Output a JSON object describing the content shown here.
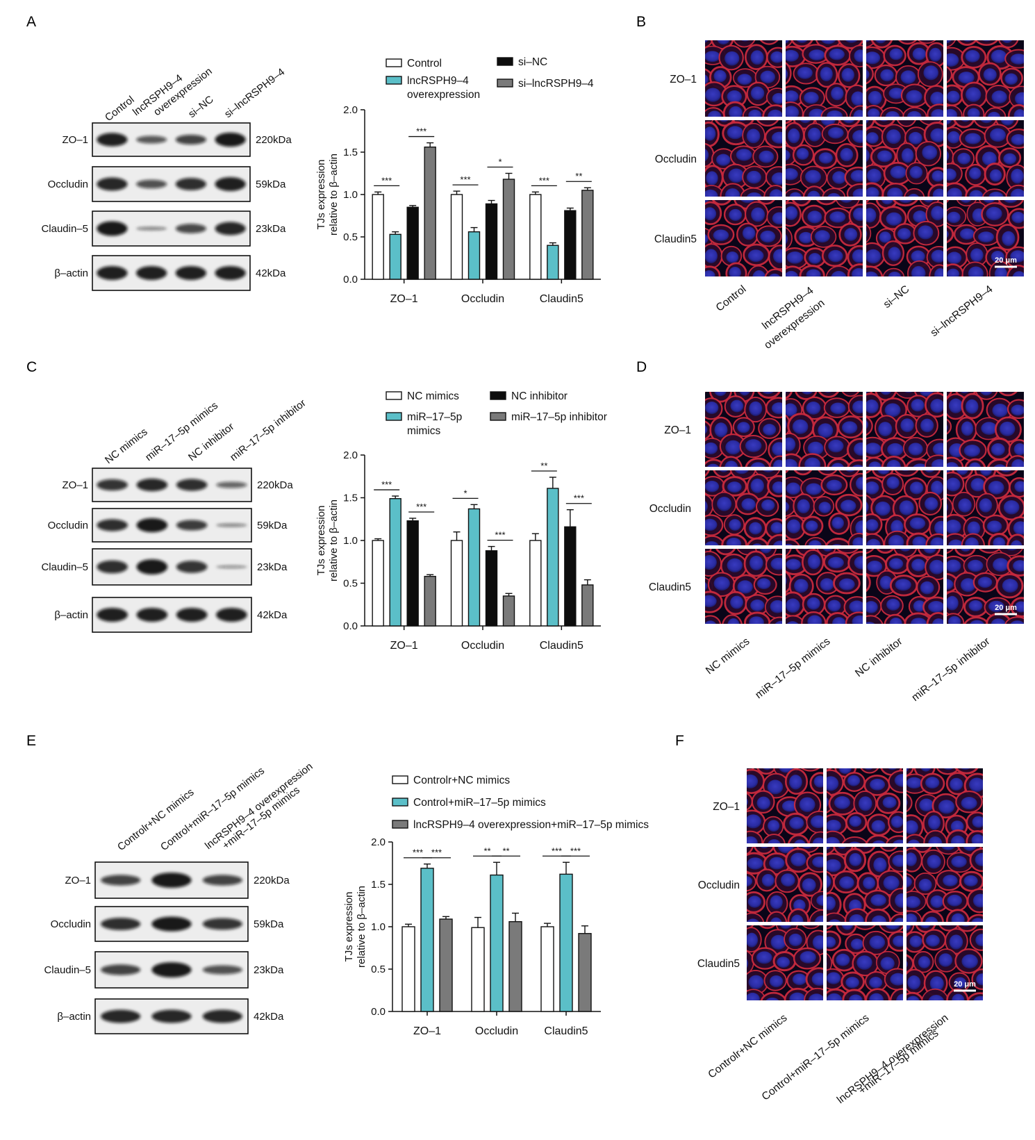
{
  "colors": {
    "white": "#ffffff",
    "teal": "#5bbfc8",
    "black": "#0d0d0d",
    "gray": "#7a7a7a",
    "cellRed": "#c82a3e",
    "cellBlue": "#2a2fb0",
    "cellDark": "#0a0518"
  },
  "panelA": {
    "letter": "A",
    "lanes": [
      "Control",
      "lncRSPH9–4",
      "overexpression",
      "si–NC",
      "si–lncRSPH9–4"
    ],
    "blots": [
      {
        "name": "ZO–1",
        "kda": "220kDa"
      },
      {
        "name": "Occludin",
        "kda": "59kDa"
      },
      {
        "name": "Claudin–5",
        "kda": "23kDa"
      },
      {
        "name": "β–actin",
        "kda": "42kDa"
      }
    ]
  },
  "panelC": {
    "letter": "C",
    "lanes": [
      "NC mimics",
      "miR–17–5p mimics",
      "NC inhibitor",
      "miR–17–5p inhibitor"
    ],
    "blots": [
      {
        "name": "ZO–1",
        "kda": "220kDa"
      },
      {
        "name": "Occludin",
        "kda": "59kDa"
      },
      {
        "name": "Claudin–5",
        "kda": "23kDa"
      },
      {
        "name": "β–actin",
        "kda": "42kDa"
      }
    ]
  },
  "panelE": {
    "letter": "E",
    "lanes": [
      "Controlr+NC mimics",
      "Control+miR–17–5p mimics",
      "lncRSPH9–4 overexpression",
      "+miR–17–5p mimics"
    ],
    "blots": [
      {
        "name": "ZO–1",
        "kda": "220kDa"
      },
      {
        "name": "Occludin",
        "kda": "59kDa"
      },
      {
        "name": "Claudin–5",
        "kda": "23kDa"
      },
      {
        "name": "β–actin",
        "kda": "42kDa"
      }
    ]
  },
  "panelB": {
    "letter": "B",
    "rows": [
      "ZO–1",
      "Occludin",
      "Claudin5"
    ],
    "cols": [
      "Control",
      "lncRSPH9–4",
      "overexpression",
      "si–NC",
      "si–lncRSPH9–4"
    ],
    "scale": "20 μm"
  },
  "panelD": {
    "letter": "D",
    "rows": [
      "ZO–1",
      "Occludin",
      "Claudin5"
    ],
    "cols": [
      "NC mimics",
      "miR–17–5p mimics",
      "NC inhibitor",
      "miR–17–5p inhibitor"
    ],
    "scale": "20 μm"
  },
  "panelF": {
    "letter": "F",
    "rows": [
      "ZO–1",
      "Occludin",
      "Claudin5"
    ],
    "cols": [
      "Controlr+NC mimics",
      "Control+miR–17–5p mimics",
      "lncRSPH9–4 overexpression",
      "+miR–17–5p mimics"
    ],
    "scale": "20 μm"
  },
  "chart_data": [
    {
      "type": "bar",
      "ylabel": [
        "TJs expression",
        "relative to β–actin"
      ],
      "ylim": [
        0,
        2.0
      ],
      "yticks": [
        "0.0",
        "0.5",
        "1.0",
        "1.5",
        "2.0"
      ],
      "categories": [
        "ZO–1",
        "Occludin",
        "Claudin5"
      ],
      "legend": [
        {
          "label": [
            "Control"
          ],
          "color": "white"
        },
        {
          "label": [
            "lncRSPH9–4",
            "overexpression"
          ],
          "color": "teal"
        },
        {
          "label": [
            "si–NC"
          ],
          "color": "black"
        },
        {
          "label": [
            "si–lncRSPH9–4"
          ],
          "color": "gray"
        }
      ],
      "series": [
        {
          "values": [
            1.0,
            1.0,
            1.0
          ],
          "err": [
            0.03,
            0.04,
            0.03
          ]
        },
        {
          "values": [
            0.53,
            0.56,
            0.4
          ],
          "err": [
            0.03,
            0.05,
            0.03
          ]
        },
        {
          "values": [
            0.85,
            0.89,
            0.81
          ],
          "err": [
            0.02,
            0.04,
            0.03
          ]
        },
        {
          "values": [
            1.56,
            1.18,
            1.05
          ],
          "err": [
            0.05,
            0.07,
            0.03
          ]
        }
      ],
      "sig": [
        {
          "cat": 0,
          "a": 0,
          "b": 1,
          "label": "***"
        },
        {
          "cat": 0,
          "a": 2,
          "b": 3,
          "label": "***"
        },
        {
          "cat": 1,
          "a": 0,
          "b": 1,
          "label": "***"
        },
        {
          "cat": 1,
          "a": 2,
          "b": 3,
          "label": "*"
        },
        {
          "cat": 2,
          "a": 0,
          "b": 1,
          "label": "***"
        },
        {
          "cat": 2,
          "a": 2,
          "b": 3,
          "label": "**"
        }
      ]
    },
    {
      "type": "bar",
      "ylabel": [
        "TJs expression",
        "relative to β–actin"
      ],
      "ylim": [
        0,
        2.0
      ],
      "yticks": [
        "0.0",
        "0.5",
        "1.0",
        "1.5",
        "2.0"
      ],
      "categories": [
        "ZO–1",
        "Occludin",
        "Claudin5"
      ],
      "legend": [
        {
          "label": [
            "NC mimics"
          ],
          "color": "white"
        },
        {
          "label": [
            "miR–17–5p",
            "mimics"
          ],
          "color": "teal"
        },
        {
          "label": [
            "NC inhibitor"
          ],
          "color": "black"
        },
        {
          "label": [
            "miR–17–5p inhibitor"
          ],
          "color": "gray"
        }
      ],
      "series": [
        {
          "values": [
            1.0,
            1.0,
            1.0
          ],
          "err": [
            0.02,
            0.1,
            0.08
          ]
        },
        {
          "values": [
            1.49,
            1.37,
            1.61
          ],
          "err": [
            0.03,
            0.05,
            0.13
          ]
        },
        {
          "values": [
            1.23,
            0.88,
            1.16
          ],
          "err": [
            0.03,
            0.05,
            0.2
          ]
        },
        {
          "values": [
            0.58,
            0.35,
            0.48
          ],
          "err": [
            0.02,
            0.03,
            0.06
          ]
        }
      ],
      "sig": [
        {
          "cat": 0,
          "a": 0,
          "b": 1,
          "label": "***"
        },
        {
          "cat": 0,
          "a": 2,
          "b": 3,
          "label": "***"
        },
        {
          "cat": 1,
          "a": 0,
          "b": 1,
          "label": "*"
        },
        {
          "cat": 1,
          "a": 2,
          "b": 3,
          "label": "***"
        },
        {
          "cat": 2,
          "a": 0,
          "b": 1,
          "label": "**"
        },
        {
          "cat": 2,
          "a": 2,
          "b": 3,
          "label": "***"
        }
      ]
    },
    {
      "type": "bar",
      "ylabel": [
        "TJs expression",
        "relative to β–actin"
      ],
      "ylim": [
        0,
        2.0
      ],
      "yticks": [
        "0.0",
        "0.5",
        "1.0",
        "1.5",
        "2.0"
      ],
      "categories": [
        "ZO–1",
        "Occludin",
        "Claudin5"
      ],
      "legend": [
        {
          "label": [
            "Controlr+NC mimics"
          ],
          "color": "white"
        },
        {
          "label": [
            "Control+miR–17–5p mimics"
          ],
          "color": "teal"
        },
        {
          "label": [
            "lncRSPH9–4 overexpression+miR–17–5p mimics"
          ],
          "color": "gray"
        }
      ],
      "series": [
        {
          "values": [
            1.0,
            0.99,
            1.0
          ],
          "err": [
            0.03,
            0.12,
            0.04
          ]
        },
        {
          "values": [
            1.69,
            1.61,
            1.62
          ],
          "err": [
            0.05,
            0.15,
            0.14
          ]
        },
        {
          "values": [
            1.09,
            1.06,
            0.92
          ],
          "err": [
            0.03,
            0.1,
            0.09
          ]
        }
      ],
      "sig": [
        {
          "cat": 0,
          "a": 0,
          "b": 1,
          "label": "***"
        },
        {
          "cat": 0,
          "a": 1,
          "b": 2,
          "label": "***"
        },
        {
          "cat": 1,
          "a": 0,
          "b": 1,
          "label": "**"
        },
        {
          "cat": 1,
          "a": 1,
          "b": 2,
          "label": "**"
        },
        {
          "cat": 2,
          "a": 0,
          "b": 1,
          "label": "***"
        },
        {
          "cat": 2,
          "a": 1,
          "b": 2,
          "label": "***"
        }
      ]
    }
  ]
}
